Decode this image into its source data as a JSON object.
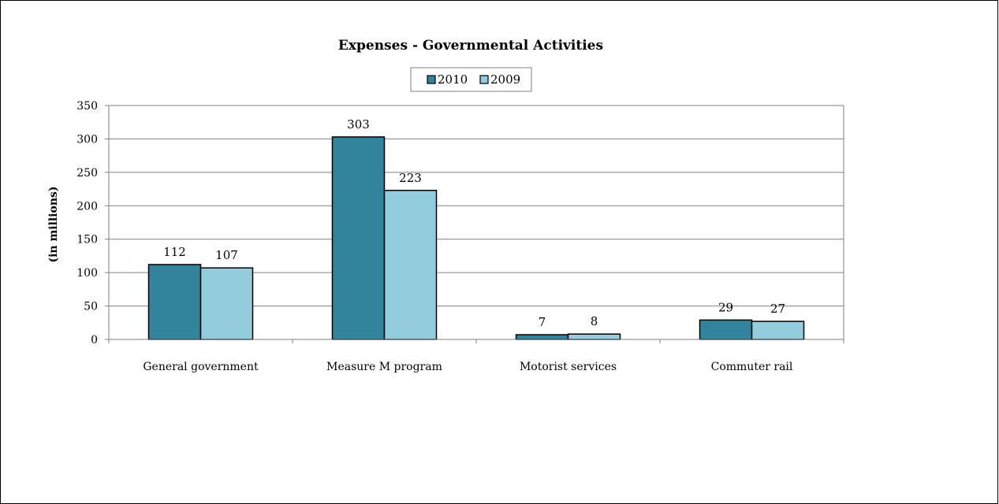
{
  "chart_data": {
    "type": "bar",
    "title": "Expenses - Governmental Activities",
    "ylabel": "(in millions)",
    "xlabel": "",
    "categories": [
      "General government",
      "Measure M program",
      "Motorist services",
      "Commuter rail"
    ],
    "series": [
      {
        "name": "2010",
        "values": [
          112,
          303,
          7,
          29
        ],
        "color": "#31849b"
      },
      {
        "name": "2009",
        "values": [
          107,
          223,
          8,
          27
        ],
        "color": "#93cddd"
      }
    ],
    "ylim": [
      0,
      350
    ],
    "yticks": [
      0,
      50,
      100,
      150,
      200,
      250,
      300,
      350
    ],
    "grid": true,
    "legend_position": "top-center"
  }
}
